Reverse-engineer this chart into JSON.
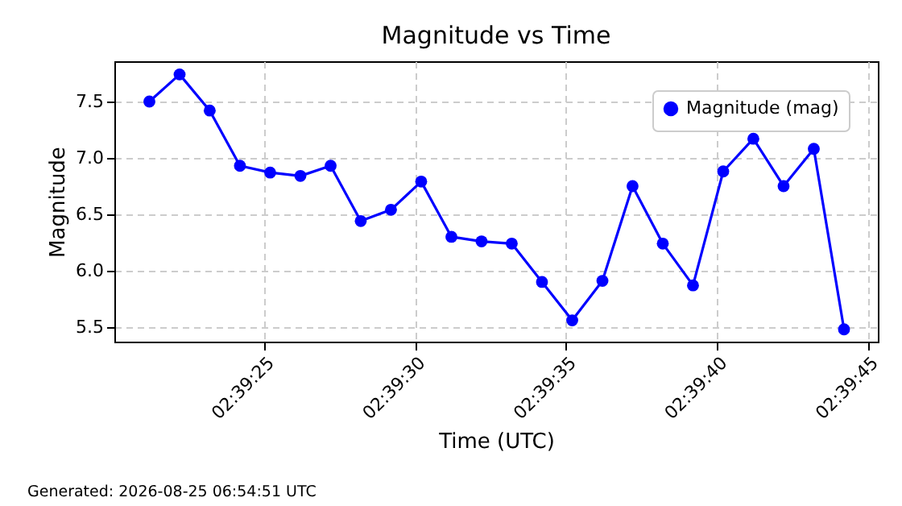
{
  "chart_data": {
    "type": "line",
    "title": "Magnitude vs Time",
    "xlabel": "Time (UTC)",
    "ylabel": "Magnitude",
    "x": [
      2.655889,
      2.656167,
      2.656444,
      2.656722,
      2.657,
      2.657278,
      2.657556,
      2.657833,
      2.658111,
      2.658389,
      2.658667,
      2.658944,
      2.659222,
      2.6595,
      2.659778,
      2.660056,
      2.660333,
      2.660611,
      2.660889,
      2.661167,
      2.661444,
      2.661722,
      2.662,
      2.662278
    ],
    "series": [
      {
        "name": "Magnitude (mag)",
        "color": "#0000ff",
        "values": [
          7.5,
          7.74,
          7.42,
          6.93,
          6.87,
          6.84,
          6.93,
          6.44,
          6.54,
          6.79,
          6.3,
          6.26,
          6.24,
          5.9,
          5.56,
          5.91,
          6.75,
          6.24,
          5.87,
          6.88,
          7.17,
          6.75,
          7.08,
          5.48
        ]
      }
    ],
    "xlim": [
      2.655567,
      2.662589
    ],
    "xticks": [
      {
        "value": 2.656944,
        "label": "02:39:25"
      },
      {
        "value": 2.658333,
        "label": "02:39:30"
      },
      {
        "value": 2.659722,
        "label": "02:39:35"
      },
      {
        "value": 2.661111,
        "label": "02:39:40"
      },
      {
        "value": 2.6625,
        "label": "02:39:45"
      }
    ],
    "ylim": [
      5.371,
      7.857
    ],
    "yticks": [
      5.5,
      {
        "value": 6,
        "label": "6.0"
      },
      6.5,
      {
        "value": 7,
        "label": "7.0"
      },
      7.5
    ],
    "grid": true,
    "legend": "top right",
    "marker": "circle",
    "line_style": "solid",
    "annotations": [
      "Generated: 2026-08-25 06:54:51 UTC"
    ]
  }
}
